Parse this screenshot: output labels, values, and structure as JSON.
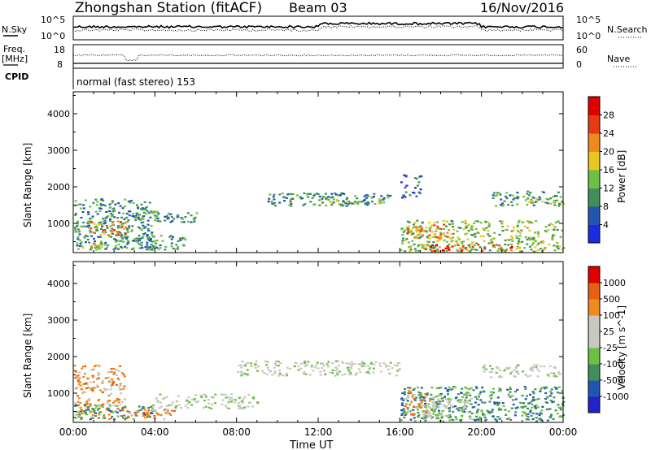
{
  "header": {
    "station": "Zhongshan Station (fitACF)",
    "beam": "Beam 03",
    "date": "16/Nov/2016"
  },
  "summary_panel": {
    "left_label": "N.Sky",
    "right_label": "N.Search",
    "left_ticks": [
      "10^5",
      "10^0"
    ],
    "right_ticks": [
      "10^5",
      "10^0"
    ]
  },
  "freq_panel": {
    "left_label_1": "Freq.",
    "left_label_2": "[MHz]",
    "cpid_label": "CPID",
    "left_ticks": [
      "18",
      "8"
    ],
    "right_ticks": [
      "60",
      "0"
    ],
    "right_label": "Nave",
    "mode_text": "normal (fast stereo) 153"
  },
  "chart_data": [
    {
      "type": "heatmap",
      "title": "",
      "ylabel": "Slant Range [km]",
      "xlabel": "",
      "ylim": [
        200,
        4600
      ],
      "y_ticks": [
        "4000",
        "3000",
        "2000",
        "1000"
      ],
      "colorbar_label": "Power [dB]",
      "colorbar_ticks": [
        "28",
        "24",
        "20",
        "16",
        "12",
        "8",
        "4"
      ],
      "colors": [
        "#1b2be0",
        "#2255b0",
        "#3f8f5a",
        "#6cc043",
        "#e8c820",
        "#ee8a1c",
        "#e63b12",
        "#e00000"
      ],
      "blobs": [
        {
          "t0": 0.0,
          "t1": 4.0,
          "r0": 300,
          "r1": 1700,
          "level": 2
        },
        {
          "t0": 0.7,
          "t1": 2.6,
          "r0": 700,
          "r1": 1100,
          "level": 5
        },
        {
          "t0": 0.2,
          "t1": 1.4,
          "r0": 350,
          "r1": 480,
          "level": 4
        },
        {
          "t0": 2.0,
          "t1": 5.5,
          "r0": 300,
          "r1": 700,
          "level": 2
        },
        {
          "t0": 3.0,
          "t1": 6.0,
          "r0": 1050,
          "r1": 1350,
          "level": 2
        },
        {
          "t0": 9.5,
          "t1": 15.5,
          "r0": 1500,
          "r1": 1850,
          "level": 2
        },
        {
          "t0": 12.0,
          "t1": 15.0,
          "r0": 1550,
          "r1": 1700,
          "level": 3
        },
        {
          "t0": 16.0,
          "t1": 24.0,
          "r0": 250,
          "r1": 1100,
          "level": 3
        },
        {
          "t0": 16.3,
          "t1": 18.5,
          "r0": 600,
          "r1": 1000,
          "level": 5
        },
        {
          "t0": 17.0,
          "t1": 21.5,
          "r0": 250,
          "r1": 450,
          "level": 6
        },
        {
          "t0": 20.5,
          "t1": 24.0,
          "r0": 1500,
          "r1": 1900,
          "level": 2
        },
        {
          "t0": 22.0,
          "t1": 24.0,
          "r0": 1550,
          "r1": 1700,
          "level": 3
        },
        {
          "t0": 16.0,
          "t1": 17.0,
          "r0": 1700,
          "r1": 2350,
          "level": 1
        }
      ]
    },
    {
      "type": "heatmap",
      "title": "",
      "ylabel": "Slant Range [km]",
      "xlabel": "Time UT",
      "ylim": [
        200,
        4600
      ],
      "y_ticks": [
        "4000",
        "3000",
        "2000",
        "1000"
      ],
      "x_ticks": [
        "00:00",
        "04:00",
        "08:00",
        "12:00",
        "16:00",
        "20:00",
        "00:00"
      ],
      "colorbar_label": "Velocity [m s^-1]",
      "colorbar_ticks": [
        "1000",
        "500",
        "100",
        "25",
        "-25",
        "-100",
        "-500",
        "-1000"
      ],
      "colors": [
        "#2222cc",
        "#2255b0",
        "#3f8f5a",
        "#6cc043",
        "#c8c8c0",
        "#c8c8c0",
        "#ee8a1c",
        "#e66012",
        "#e00000"
      ],
      "blobs": [
        {
          "t0": 0.0,
          "t1": 2.5,
          "r0": 300,
          "r1": 1800,
          "level": 6
        },
        {
          "t0": 0.0,
          "t1": 4.0,
          "r0": 300,
          "r1": 700,
          "level": 2
        },
        {
          "t0": 2.5,
          "t1": 5.0,
          "r0": 300,
          "r1": 600,
          "level": 6
        },
        {
          "t0": 4.0,
          "t1": 9.0,
          "r0": 600,
          "r1": 1000,
          "level": 4
        },
        {
          "t0": 8.0,
          "t1": 16.0,
          "r0": 1500,
          "r1": 1900,
          "level": 4
        },
        {
          "t0": 16.0,
          "t1": 24.0,
          "r0": 250,
          "r1": 1200,
          "level": 2
        },
        {
          "t0": 16.2,
          "t1": 17.5,
          "r0": 400,
          "r1": 1100,
          "level": 6
        },
        {
          "t0": 17.0,
          "t1": 19.5,
          "r0": 300,
          "r1": 900,
          "level": 4
        },
        {
          "t0": 20.0,
          "t1": 24.0,
          "r0": 1450,
          "r1": 1800,
          "level": 4
        }
      ]
    }
  ]
}
